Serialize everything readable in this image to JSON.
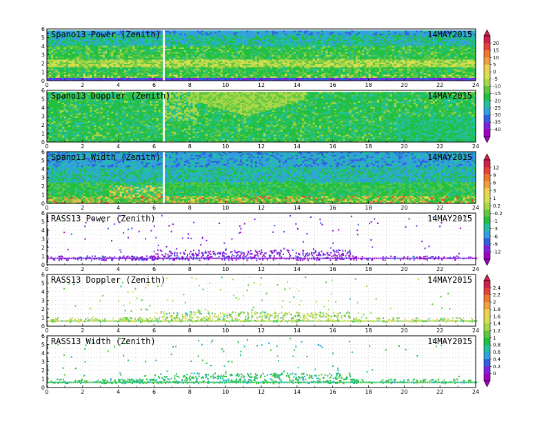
{
  "chart_data": {
    "type": "heatmap",
    "x_range": [
      0,
      24
    ],
    "y_range": [
      0,
      6
    ],
    "x_ticks": [
      "0",
      "2",
      "4",
      "6",
      "8",
      "10",
      "12",
      "14",
      "16",
      "18",
      "20",
      "22",
      "24"
    ],
    "y_ticks": [
      "0",
      "1",
      "2",
      "3",
      "4",
      "5",
      "6"
    ],
    "grid": true,
    "date": "14MAY2015",
    "panels": [
      {
        "title": "Spano13 Power (Zenith)",
        "date": "14MAY2015",
        "colorbar": 0,
        "kind": "dense",
        "style": "power"
      },
      {
        "title": "Spano13 Doppler (Zenith)",
        "date": "14MAY2015",
        "colorbar": 0,
        "kind": "dense",
        "style": "doppler"
      },
      {
        "title": "Spano13 Width (Zenith)",
        "date": "14MAY2015",
        "colorbar": 1,
        "kind": "dense",
        "style": "width"
      },
      {
        "title": "RASS13 Power (Zenith)",
        "date": "14MAY2015",
        "colorbar": 1,
        "kind": "sparse",
        "style": "rpower"
      },
      {
        "title": "RASS13 Doppler (Zenith)",
        "date": "14MAY2015",
        "colorbar": 2,
        "kind": "sparse",
        "style": "rdoppler"
      },
      {
        "title": "RASS13 Width (Zenith)",
        "date": "14MAY2015",
        "colorbar": 2,
        "kind": "sparse",
        "style": "rwidth"
      }
    ],
    "colorbars": [
      {
        "labels": [
          "20",
          "15",
          "10",
          "5",
          "0",
          "-5",
          "-10",
          "-15",
          "-20",
          "-25",
          "-30",
          "-35",
          "-40"
        ],
        "colors": [
          "#d0204a",
          "#e8403a",
          "#f07830",
          "#f0a040",
          "#f0d050",
          "#d8e050",
          "#a8d848",
          "#60c840",
          "#20c040",
          "#20c0a0",
          "#30a0e0",
          "#3060e0",
          "#8020e0",
          "#a000c0"
        ]
      },
      {
        "labels": [
          "12",
          "9",
          "6",
          "3",
          "1",
          "0.2",
          "-0.2",
          "-1",
          "-3",
          "-6",
          "-9",
          "-12"
        ],
        "colors": [
          "#d0204a",
          "#e8403a",
          "#f07830",
          "#f0a040",
          "#f0d050",
          "#d8e050",
          "#a8d848",
          "#60c840",
          "#20c040",
          "#20c0a0",
          "#30a0e0",
          "#3060e0",
          "#8020e0",
          "#a000c0"
        ]
      },
      {
        "labels": [
          "2.4",
          "2.2",
          "2",
          "1.8",
          "1.6",
          "1.4",
          "1.2",
          "1",
          "0.8",
          "0.6",
          "0.4",
          "0.2",
          "0"
        ],
        "colors": [
          "#d0204a",
          "#e8403a",
          "#f07830",
          "#f0a040",
          "#f0d050",
          "#d8e050",
          "#a8d848",
          "#60c840",
          "#20c040",
          "#20c0a0",
          "#30a0e0",
          "#3060e0",
          "#8020e0",
          "#a000c0"
        ]
      }
    ]
  }
}
